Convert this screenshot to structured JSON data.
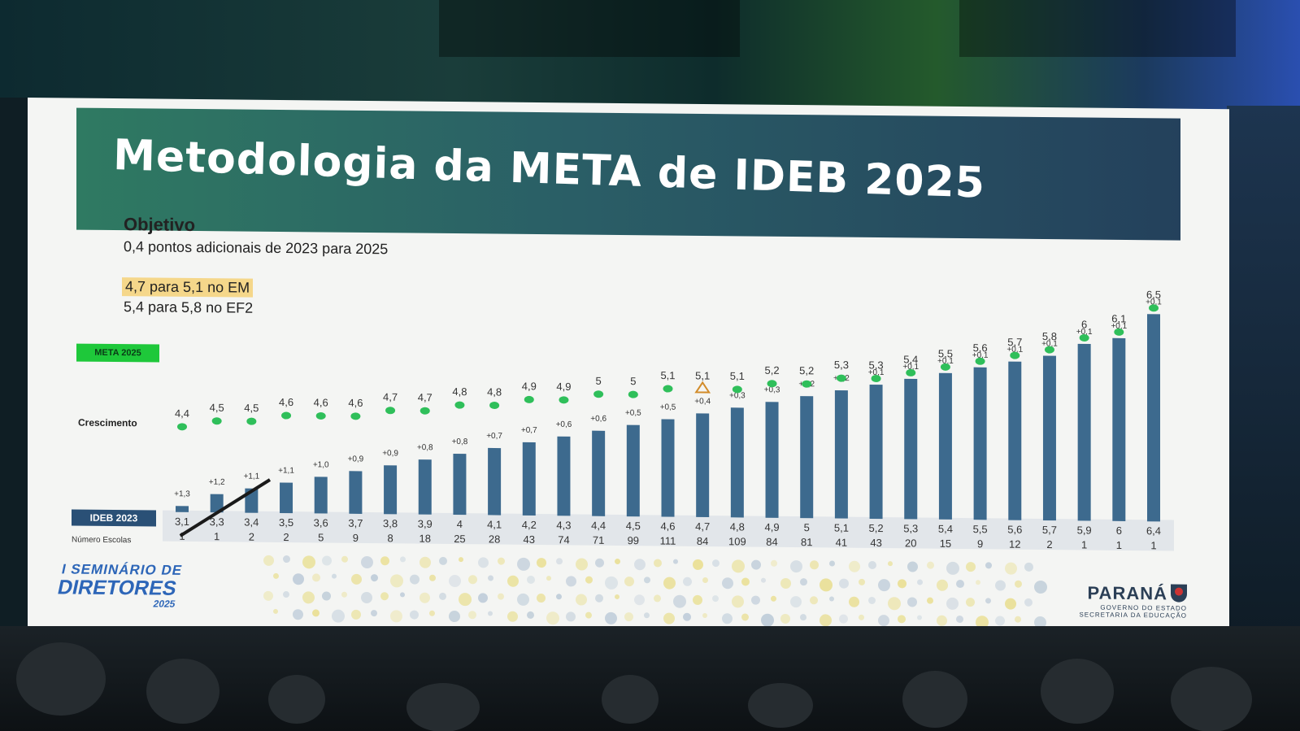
{
  "slide": {
    "title": "Metodologia da META de IDEB 2025",
    "objective_heading": "Objetivo",
    "objective_text": "0,4 pontos adicionais de 2023 para 2025",
    "target_em": "4,7 para 5,1 no EM",
    "target_ef2": "5,4 para 5,8 no EF2",
    "meta_label": "META 2025",
    "growth_label": "Crescimento",
    "ideb_label": "IDEB 2023",
    "schools_label": "Número Escolas",
    "event_logo": {
      "line1": "I SEMINÁRIO DE",
      "line2": "DIRETORES",
      "line3": "2025"
    },
    "state_logo": {
      "name": "PARANÁ",
      "sub1": "GOVERNO DO ESTADO",
      "sub2": "SECRETARIA DA EDUCAÇÃO",
      "icon": "crest-icon"
    }
  },
  "colors": {
    "banner_start": "#2f7a62",
    "banner_end": "#24415c",
    "bar": "#3d6a8e",
    "meta_dot": "#2fbf5a",
    "meta_tag": "#1ec83a",
    "highlight": "#f5d78a",
    "triangle": "#d28c2a"
  },
  "chart_data": {
    "type": "bar",
    "title": "Metodologia da META de IDEB 2025",
    "categories": [
      "3,1",
      "3,3",
      "3,4",
      "3,5",
      "3,6",
      "3,7",
      "3,8",
      "3,9",
      "4",
      "4,1",
      "4,2",
      "4,3",
      "4,4",
      "4,5",
      "4,6",
      "4,7",
      "4,8",
      "4,9",
      "5",
      "5,1",
      "5,2",
      "5,3",
      "5,4",
      "5,5",
      "5,6",
      "5,7",
      "5,9",
      "6",
      "6,4"
    ],
    "series": [
      {
        "name": "IDEB 2023",
        "values": [
          3.1,
          3.3,
          3.4,
          3.5,
          3.6,
          3.7,
          3.8,
          3.9,
          4.0,
          4.1,
          4.2,
          4.3,
          4.4,
          4.5,
          4.6,
          4.7,
          4.8,
          4.9,
          5.0,
          5.1,
          5.2,
          5.3,
          5.4,
          5.5,
          5.6,
          5.7,
          5.9,
          6.0,
          6.4
        ]
      },
      {
        "name": "META 2025",
        "values": [
          4.4,
          4.5,
          4.5,
          4.6,
          4.6,
          4.6,
          4.7,
          4.7,
          4.8,
          4.8,
          4.9,
          4.9,
          5.0,
          5.0,
          5.1,
          5.1,
          5.1,
          5.2,
          5.2,
          5.3,
          5.3,
          5.4,
          5.5,
          5.6,
          5.7,
          5.8,
          6.0,
          6.1,
          6.5
        ]
      }
    ],
    "ideb_labels": [
      "3,1",
      "3,3",
      "3,4",
      "3,5",
      "3,6",
      "3,7",
      "3,8",
      "3,9",
      "4",
      "4,1",
      "4,2",
      "4,3",
      "4,4",
      "4,5",
      "4,6",
      "4,7",
      "4,8",
      "4,9",
      "5",
      "5,1",
      "5,2",
      "5,3",
      "5,4",
      "5,5",
      "5,6",
      "5,7",
      "5,9",
      "6",
      "6,4"
    ],
    "meta_labels": [
      "4,4",
      "4,5",
      "4,5",
      "4,6",
      "4,6",
      "4,6",
      "4,7",
      "4,7",
      "4,8",
      "4,8",
      "4,9",
      "4,9",
      "5",
      "5",
      "5,1",
      "5,1",
      "5,1",
      "5,2",
      "5,2",
      "5,3",
      "5,3",
      "5,4",
      "5,5",
      "5,6",
      "5,7",
      "5,8",
      "6",
      "6,1",
      "6,5"
    ],
    "growth_labels": [
      "+1,3",
      "+1,2",
      "+1,1",
      "+1,1",
      "+1,0",
      "+0,9",
      "+0,9",
      "+0,8",
      "+0,8",
      "+0,7",
      "+0,7",
      "+0,6",
      "+0,6",
      "+0,5",
      "+0,5",
      "+0,4",
      "+0,3",
      "+0,3",
      "+0,2",
      "+0,2",
      "+0,1",
      "+0,1",
      "+0,1",
      "+0,1",
      "+0,1",
      "+0,1",
      "+0,1",
      "+0,1",
      "+0,1"
    ],
    "schools": [
      "1",
      "1",
      "2",
      "2",
      "5",
      "9",
      "8",
      "18",
      "25",
      "28",
      "43",
      "74",
      "71",
      "99",
      "111",
      "84",
      "109",
      "84",
      "81",
      "41",
      "43",
      "20",
      "15",
      "9",
      "12",
      "2",
      "1",
      "1",
      "1"
    ],
    "meta_markers": [
      "dot",
      "dot",
      "dot",
      "dot",
      "dot",
      "dot",
      "dot",
      "dot",
      "dot",
      "dot",
      "dot",
      "dot",
      "dot",
      "dot",
      "dot",
      "triangle",
      "dot",
      "dot",
      "dot",
      "dot",
      "dot",
      "dot",
      "dot",
      "dot",
      "dot",
      "dot",
      "dot",
      "dot",
      "dot"
    ],
    "xlabel": "",
    "ylabel": "",
    "ylim": [
      3.0,
      6.6
    ],
    "grid": false
  }
}
